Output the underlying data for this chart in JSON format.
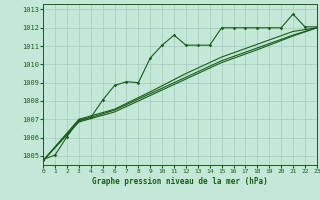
{
  "title": "Graphe pression niveau de la mer (hPa)",
  "background_color": "#c4e8d8",
  "grid_color": "#a8cfc0",
  "line_color": "#1a5c1a",
  "text_color": "#1a5c1a",
  "xlim": [
    0,
    23
  ],
  "ylim": [
    1004.5,
    1013.3
  ],
  "yticks": [
    1005,
    1006,
    1007,
    1008,
    1009,
    1010,
    1011,
    1012,
    1013
  ],
  "xticks": [
    0,
    1,
    2,
    3,
    4,
    5,
    6,
    7,
    8,
    9,
    10,
    11,
    12,
    13,
    14,
    15,
    16,
    17,
    18,
    19,
    20,
    21,
    22,
    23
  ],
  "main_series": [
    [
      0,
      1004.8
    ],
    [
      1,
      1005.05
    ],
    [
      2,
      1006.05
    ],
    [
      3,
      1006.95
    ],
    [
      4,
      1007.1
    ],
    [
      5,
      1008.05
    ],
    [
      6,
      1008.85
    ],
    [
      7,
      1009.05
    ],
    [
      8,
      1009.0
    ],
    [
      9,
      1010.35
    ],
    [
      10,
      1011.05
    ],
    [
      11,
      1011.6
    ],
    [
      12,
      1011.05
    ],
    [
      13,
      1011.05
    ],
    [
      14,
      1011.05
    ],
    [
      15,
      1012.0
    ],
    [
      16,
      1012.0
    ],
    [
      17,
      1012.0
    ],
    [
      18,
      1012.0
    ],
    [
      19,
      1012.0
    ],
    [
      20,
      1012.0
    ],
    [
      21,
      1012.75
    ],
    [
      22,
      1012.05
    ],
    [
      23,
      1012.05
    ]
  ],
  "line2": [
    [
      0,
      1004.75
    ],
    [
      3,
      1007.0
    ],
    [
      6,
      1007.55
    ],
    [
      9,
      1008.5
    ],
    [
      12,
      1009.5
    ],
    [
      15,
      1010.4
    ],
    [
      18,
      1011.1
    ],
    [
      21,
      1011.8
    ],
    [
      23,
      1012.0
    ]
  ],
  "line3": [
    [
      0,
      1004.75
    ],
    [
      3,
      1006.9
    ],
    [
      6,
      1007.5
    ],
    [
      9,
      1008.4
    ],
    [
      12,
      1009.3
    ],
    [
      15,
      1010.2
    ],
    [
      18,
      1010.9
    ],
    [
      21,
      1011.6
    ],
    [
      23,
      1012.0
    ]
  ],
  "line4": [
    [
      0,
      1004.75
    ],
    [
      3,
      1006.85
    ],
    [
      6,
      1007.4
    ],
    [
      9,
      1008.3
    ],
    [
      12,
      1009.2
    ],
    [
      15,
      1010.1
    ],
    [
      18,
      1010.8
    ],
    [
      21,
      1011.55
    ],
    [
      23,
      1012.0
    ]
  ]
}
